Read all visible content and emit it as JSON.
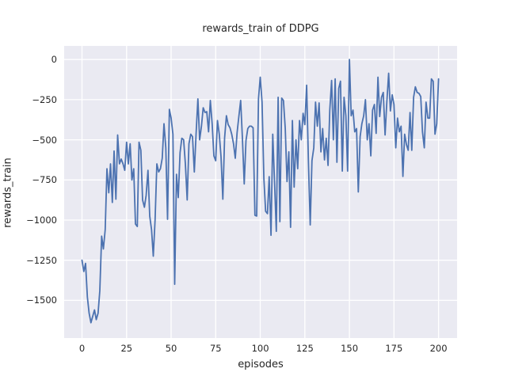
{
  "figure": {
    "title": "rewards_train of DDPG",
    "xlabel": "episodes",
    "ylabel": "rewards_train"
  },
  "colors": {
    "line": "#4C72B0",
    "axes_background": "#EAEAF2",
    "grid": "#FFFFFF",
    "text": "#262626",
    "figure_background": "#FFFFFF"
  },
  "chart_data": {
    "type": "line",
    "title": "rewards_train of DDPG",
    "xlabel": "episodes",
    "ylabel": "rewards_train",
    "grid": true,
    "legend": false,
    "xlim": [
      -10,
      210.4
    ],
    "ylim": [
      -1735,
      85
    ],
    "x_ticks": {
      "values": [
        0,
        25,
        50,
        75,
        100,
        125,
        150,
        175,
        200
      ],
      "labels": [
        "0",
        "25",
        "50",
        "75",
        "100",
        "125",
        "150",
        "175",
        "200"
      ]
    },
    "y_ticks": {
      "values": [
        0,
        -250,
        -500,
        -750,
        -1000,
        -1250,
        -1500
      ],
      "labels": [
        "0",
        "−250",
        "−500",
        "−750",
        "−1000",
        "−1250",
        "−1500"
      ]
    },
    "series": [
      {
        "name": "rewards_train",
        "x_description": "episode index, x = point index (0..200)",
        "values": [
          -1250,
          -1320,
          -1270,
          -1480,
          -1580,
          -1640,
          -1600,
          -1560,
          -1620,
          -1580,
          -1440,
          -1100,
          -1180,
          -1060,
          -680,
          -830,
          -650,
          -890,
          -570,
          -870,
          -470,
          -650,
          -620,
          -650,
          -690,
          -515,
          -650,
          -525,
          -750,
          -680,
          -1025,
          -1040,
          -515,
          -565,
          -875,
          -920,
          -845,
          -690,
          -975,
          -1060,
          -1225,
          -995,
          -650,
          -700,
          -680,
          -615,
          -400,
          -550,
          -995,
          -310,
          -365,
          -465,
          -1400,
          -715,
          -860,
          -580,
          -490,
          -500,
          -650,
          -875,
          -525,
          -465,
          -480,
          -700,
          -465,
          -245,
          -500,
          -415,
          -300,
          -330,
          -325,
          -450,
          -255,
          -400,
          -600,
          -630,
          -380,
          -465,
          -605,
          -870,
          -490,
          -350,
          -405,
          -425,
          -465,
          -525,
          -615,
          -455,
          -355,
          -255,
          -490,
          -775,
          -505,
          -430,
          -415,
          -415,
          -425,
          -970,
          -975,
          -245,
          -110,
          -265,
          -740,
          -945,
          -960,
          -730,
          -1095,
          -465,
          -770,
          -1070,
          -235,
          -1010,
          -240,
          -255,
          -430,
          -760,
          -575,
          -1045,
          -380,
          -795,
          -500,
          -680,
          -380,
          -500,
          -335,
          -405,
          -160,
          -630,
          -1030,
          -630,
          -550,
          -265,
          -415,
          -270,
          -575,
          -430,
          -625,
          -490,
          -660,
          -315,
          -130,
          -500,
          -120,
          -640,
          -180,
          -135,
          -695,
          -235,
          -350,
          -695,
          0,
          -350,
          -315,
          -450,
          -430,
          -825,
          -480,
          -400,
          -350,
          -250,
          -500,
          -400,
          -600,
          -315,
          -280,
          -460,
          -110,
          -355,
          -235,
          -205,
          -470,
          -265,
          -85,
          -320,
          -220,
          -280,
          -550,
          -365,
          -450,
          -415,
          -728,
          -465,
          -530,
          -565,
          -330,
          -565,
          -235,
          -170,
          -205,
          -210,
          -230,
          -450,
          -550,
          -265,
          -365,
          -365,
          -120,
          -135,
          -465,
          -400,
          -120
        ]
      }
    ]
  }
}
